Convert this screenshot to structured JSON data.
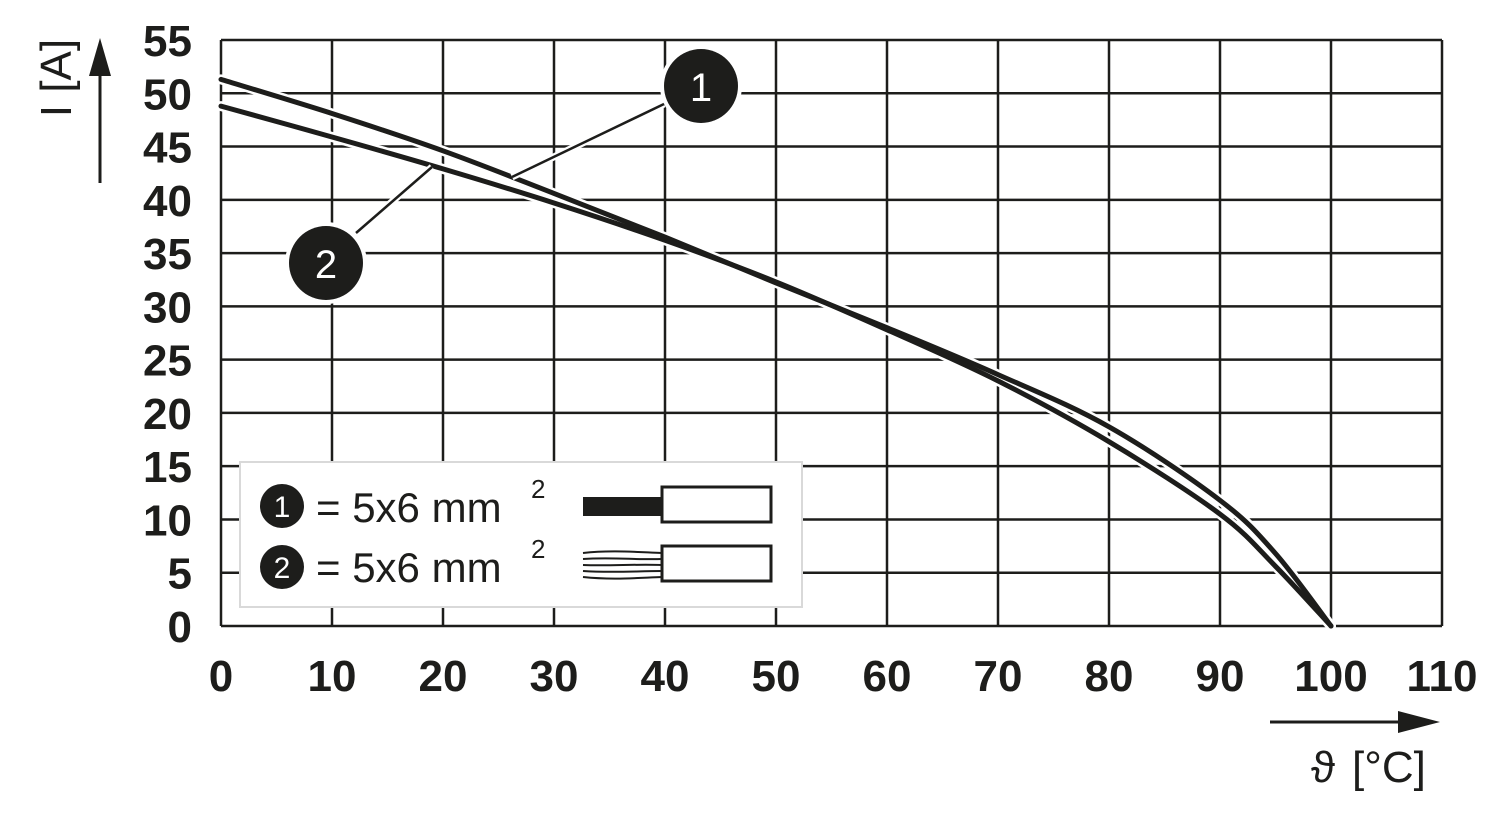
{
  "chart_data": {
    "type": "line",
    "xlabel_symbol": "ϑ",
    "xlabel_unit": "[°C]",
    "ylabel": "I [A]",
    "xlim": [
      0,
      110
    ],
    "ylim": [
      0,
      55
    ],
    "xticks": [
      "0",
      "10",
      "20",
      "30",
      "40",
      "50",
      "60",
      "70",
      "80",
      "90",
      "100",
      "110"
    ],
    "yticks": [
      "0",
      "5",
      "10",
      "15",
      "20",
      "25",
      "30",
      "35",
      "40",
      "45",
      "50",
      "55"
    ],
    "grid": true,
    "legend_position": "bottom-left",
    "series": [
      {
        "name": "1",
        "legend_label": "= 5x6 mm",
        "legend_sup": "2",
        "conductor": "solid",
        "x": [
          0,
          10,
          20,
          30,
          40,
          50,
          60,
          70,
          80,
          90,
          95,
          100
        ],
        "y": [
          51.3,
          48.1,
          44.6,
          40.6,
          36.5,
          32.2,
          28.0,
          23.6,
          18.7,
          11.8,
          6.8,
          0
        ]
      },
      {
        "name": "2",
        "legend_label": "= 5x6 mm",
        "legend_sup": "2",
        "conductor": "stranded",
        "x": [
          0,
          10,
          20,
          30,
          40,
          50,
          60,
          70,
          80,
          90,
          95,
          100
        ],
        "y": [
          48.8,
          45.9,
          42.9,
          39.7,
          36.2,
          32.3,
          27.8,
          23.0,
          17.3,
          10.5,
          5.6,
          0
        ]
      }
    ]
  },
  "colors": {
    "ink": "#1d1d1b",
    "grid": "#1d1d1b",
    "legend_bg": "#ffffff",
    "legend_border": "#d9d9d9"
  }
}
